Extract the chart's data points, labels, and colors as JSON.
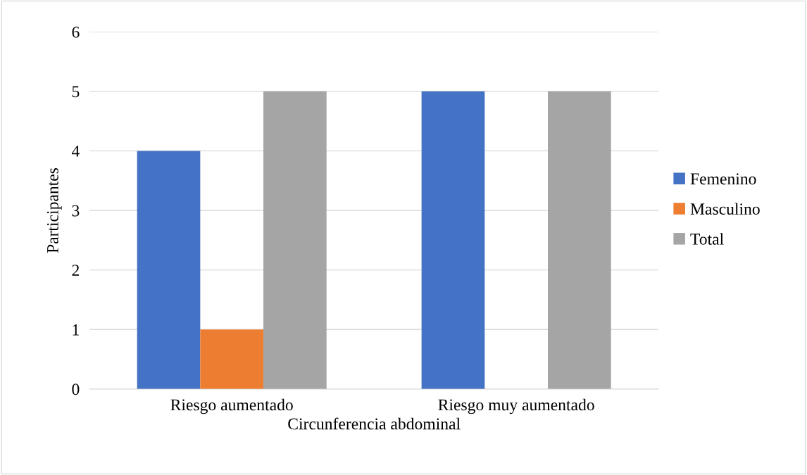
{
  "chart_data": {
    "type": "bar",
    "xlabel": "Circunferencia abdominal",
    "ylabel": "Participantes",
    "categories": [
      "Riesgo aumentado",
      "Riesgo muy aumentado"
    ],
    "series": [
      {
        "name": "Femenino",
        "color": "#4472c4",
        "values": [
          4,
          5
        ]
      },
      {
        "name": "Masculino",
        "color": "#ed7d31",
        "values": [
          1,
          0
        ]
      },
      {
        "name": "Total",
        "color": "#a5a5a5",
        "values": [
          5,
          5
        ]
      }
    ],
    "ylim": [
      0,
      6
    ],
    "yticks": [
      0,
      1,
      2,
      3,
      4,
      5,
      6
    ],
    "grid": "y",
    "legend": "right"
  }
}
